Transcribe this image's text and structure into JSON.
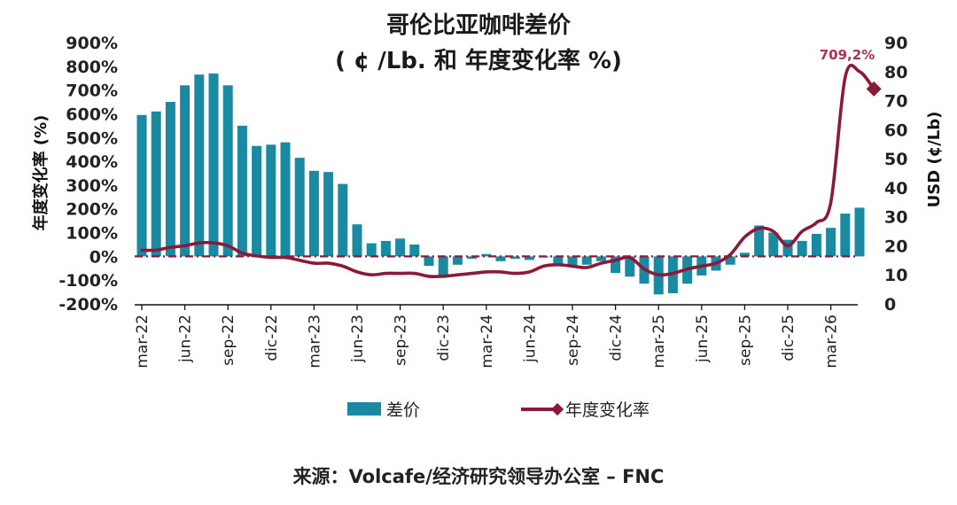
{
  "chart_data": {
    "type": "bar+line",
    "title": "哥伦比亚咖啡差价",
    "subtitle": "( ¢ /Lb. 和 年度变化率 %)",
    "left_axis": {
      "label": "年度变化率 (%)",
      "range": [
        -200,
        900
      ],
      "ticks": [
        "900%",
        "800%",
        "700%",
        "600%",
        "500%",
        "400%",
        "300%",
        "200%",
        "100%",
        "0%",
        "-100%",
        "-200%"
      ],
      "tick_values": [
        900,
        800,
        700,
        600,
        500,
        400,
        300,
        200,
        100,
        0,
        -100,
        -200
      ]
    },
    "right_axis": {
      "label": "USD (¢/Lb)",
      "range": [
        0,
        90
      ],
      "ticks": [
        "90",
        "80",
        "70",
        "60",
        "50",
        "40",
        "30",
        "20",
        "10",
        "0"
      ],
      "tick_values": [
        90,
        80,
        70,
        60,
        50,
        40,
        30,
        20,
        10,
        0
      ]
    },
    "x_tick_labels": [
      "mar-22",
      "jun-22",
      "sep-22",
      "dic-22",
      "mar-23",
      "jun-23",
      "sep-23",
      "dic-23",
      "mar-24",
      "jun-24",
      "sep-24",
      "dic-24",
      "mar-25",
      "jun-25",
      "sep-25",
      "dic-25",
      "mar-26"
    ],
    "x_tick_months": [
      0,
      3,
      6,
      9,
      12,
      15,
      18,
      21,
      24,
      27,
      30,
      33,
      36,
      39,
      42,
      45,
      48
    ],
    "series": [
      {
        "name": "差价",
        "type": "bar",
        "axis": "left",
        "color": "#1a8aa3",
        "values": [
          595,
          610,
          650,
          720,
          765,
          770,
          720,
          550,
          465,
          470,
          480,
          415,
          360,
          355,
          305,
          135,
          55,
          65,
          75,
          50,
          -40,
          -80,
          -35,
          -10,
          10,
          -20,
          -10,
          -15,
          -5,
          -30,
          -45,
          -35,
          -20,
          -70,
          -85,
          -115,
          -160,
          -155,
          -115,
          -80,
          -60,
          -35,
          15,
          130,
          100,
          70,
          65,
          95,
          120,
          180,
          205
        ]
      },
      {
        "name": "年度变化率",
        "type": "line",
        "axis": "right",
        "color": "#8b1a3a",
        "values": [
          18.5,
          18.5,
          19.5,
          20,
          21,
          21,
          20,
          17.5,
          16.5,
          16,
          16,
          15,
          14,
          14,
          13,
          11,
          10,
          10.5,
          10.5,
          10.5,
          9.5,
          9.5,
          10,
          10.5,
          11,
          11,
          10.5,
          11,
          13,
          13.5,
          13,
          12.5,
          14,
          15,
          16,
          12,
          10,
          10.5,
          12,
          13,
          14,
          17,
          23,
          26,
          25,
          20,
          25,
          28,
          35,
          78,
          80,
          74
        ]
      }
    ],
    "reference_line": {
      "axis": "left",
      "value": 0,
      "style": "dash-dot",
      "color": "#8b1a3a"
    },
    "annotation": {
      "text": "709,2%",
      "color": "#b03050"
    },
    "legend": {
      "position": "bottom"
    }
  },
  "source_text": "来源：Volcafe/经济研究领导办公室 – FNC"
}
